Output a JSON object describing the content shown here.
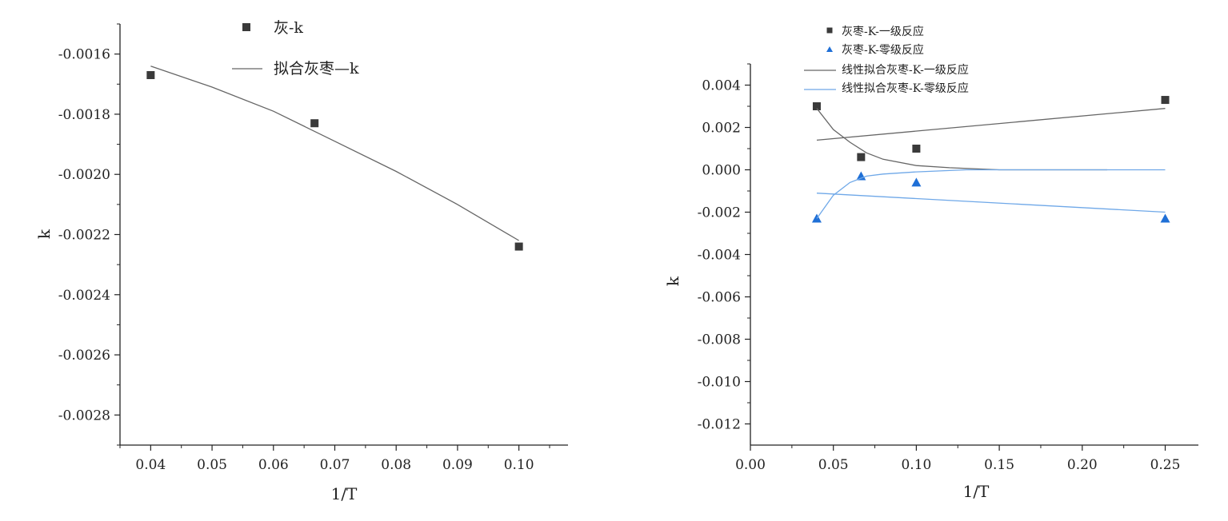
{
  "chart_data": [
    {
      "type": "scatter",
      "xlabel": "1/T",
      "ylabel": "k",
      "xlim": [
        0.035,
        0.108
      ],
      "ylim": [
        -0.0029,
        -0.0015
      ],
      "x_ticks": [
        "0.04",
        "0.05",
        "0.06",
        "0.07",
        "0.08",
        "0.09",
        "0.10"
      ],
      "y_ticks": [
        "-0.0016",
        "-0.0018",
        "-0.0020",
        "-0.0022",
        "-0.0024",
        "-0.0026",
        "-0.0028"
      ],
      "grid": false,
      "legend_position": "top",
      "series": [
        {
          "name": "灰-k",
          "kind": "points",
          "marker": "square",
          "color": "#3a3a3a",
          "x": [
            0.04,
            0.0667,
            0.1
          ],
          "y": [
            -0.00167,
            -0.00183,
            -0.00224
          ]
        },
        {
          "name": "拟合灰枣—k",
          "kind": "line",
          "color": "#666666",
          "x": [
            0.04,
            0.05,
            0.06,
            0.07,
            0.08,
            0.09,
            0.1
          ],
          "y": [
            -0.00164,
            -0.00171,
            -0.00179,
            -0.00189,
            -0.00199,
            -0.0021,
            -0.00222
          ]
        }
      ]
    },
    {
      "type": "scatter",
      "xlabel": "1/T",
      "ylabel": "k",
      "xlim": [
        0.0,
        0.27
      ],
      "ylim": [
        -0.013,
        0.005
      ],
      "x_ticks": [
        "0.00",
        "0.05",
        "0.10",
        "0.15",
        "0.20",
        "0.25"
      ],
      "y_ticks": [
        "0.004",
        "0.002",
        "0.000",
        "-0.002",
        "-0.004",
        "-0.006",
        "-0.008",
        "-0.010",
        "-0.012"
      ],
      "grid": false,
      "legend_position": "top-left",
      "series": [
        {
          "name": "灰枣-K-一级反应",
          "kind": "points",
          "marker": "square",
          "color": "#3a3a3a",
          "x": [
            0.04,
            0.0667,
            0.1,
            0.25
          ],
          "y": [
            0.003,
            0.0006,
            0.001,
            0.0033
          ]
        },
        {
          "name": "灰枣-K-零级反应",
          "kind": "points",
          "marker": "triangle",
          "color": "#1f6fd6",
          "x": [
            0.04,
            0.0667,
            0.1,
            0.25
          ],
          "y": [
            -0.0023,
            -0.0003,
            -0.0006,
            -0.0023
          ]
        },
        {
          "name": "线性拟合灰枣-K-一级反应",
          "kind": "line",
          "color": "#666666",
          "x": [
            0.04,
            0.25
          ],
          "y": [
            0.0014,
            0.0029
          ]
        },
        {
          "name": "线性拟合灰枣-K-零级反应",
          "kind": "line",
          "color": "#6fa8e8",
          "x": [
            0.04,
            0.25
          ],
          "y": [
            -0.0011,
            -0.002
          ]
        },
        {
          "kind": "line",
          "color": "#666666",
          "x": [
            0.04,
            0.05,
            0.06,
            0.07,
            0.08,
            0.1,
            0.12,
            0.15,
            0.18,
            0.215
          ],
          "y": [
            0.0029,
            0.0019,
            0.0013,
            0.0008,
            0.0005,
            0.0002,
            0.0001,
            0.0,
            0.0,
            0.0
          ]
        },
        {
          "kind": "line",
          "color": "#6fa8e8",
          "x": [
            0.04,
            0.05,
            0.06,
            0.07,
            0.08,
            0.1,
            0.13,
            0.16,
            0.2,
            0.25
          ],
          "y": [
            -0.0023,
            -0.0012,
            -0.0006,
            -0.0003,
            -0.0002,
            -0.0001,
            0.0,
            0.0,
            0.0,
            0.0
          ]
        }
      ]
    }
  ]
}
